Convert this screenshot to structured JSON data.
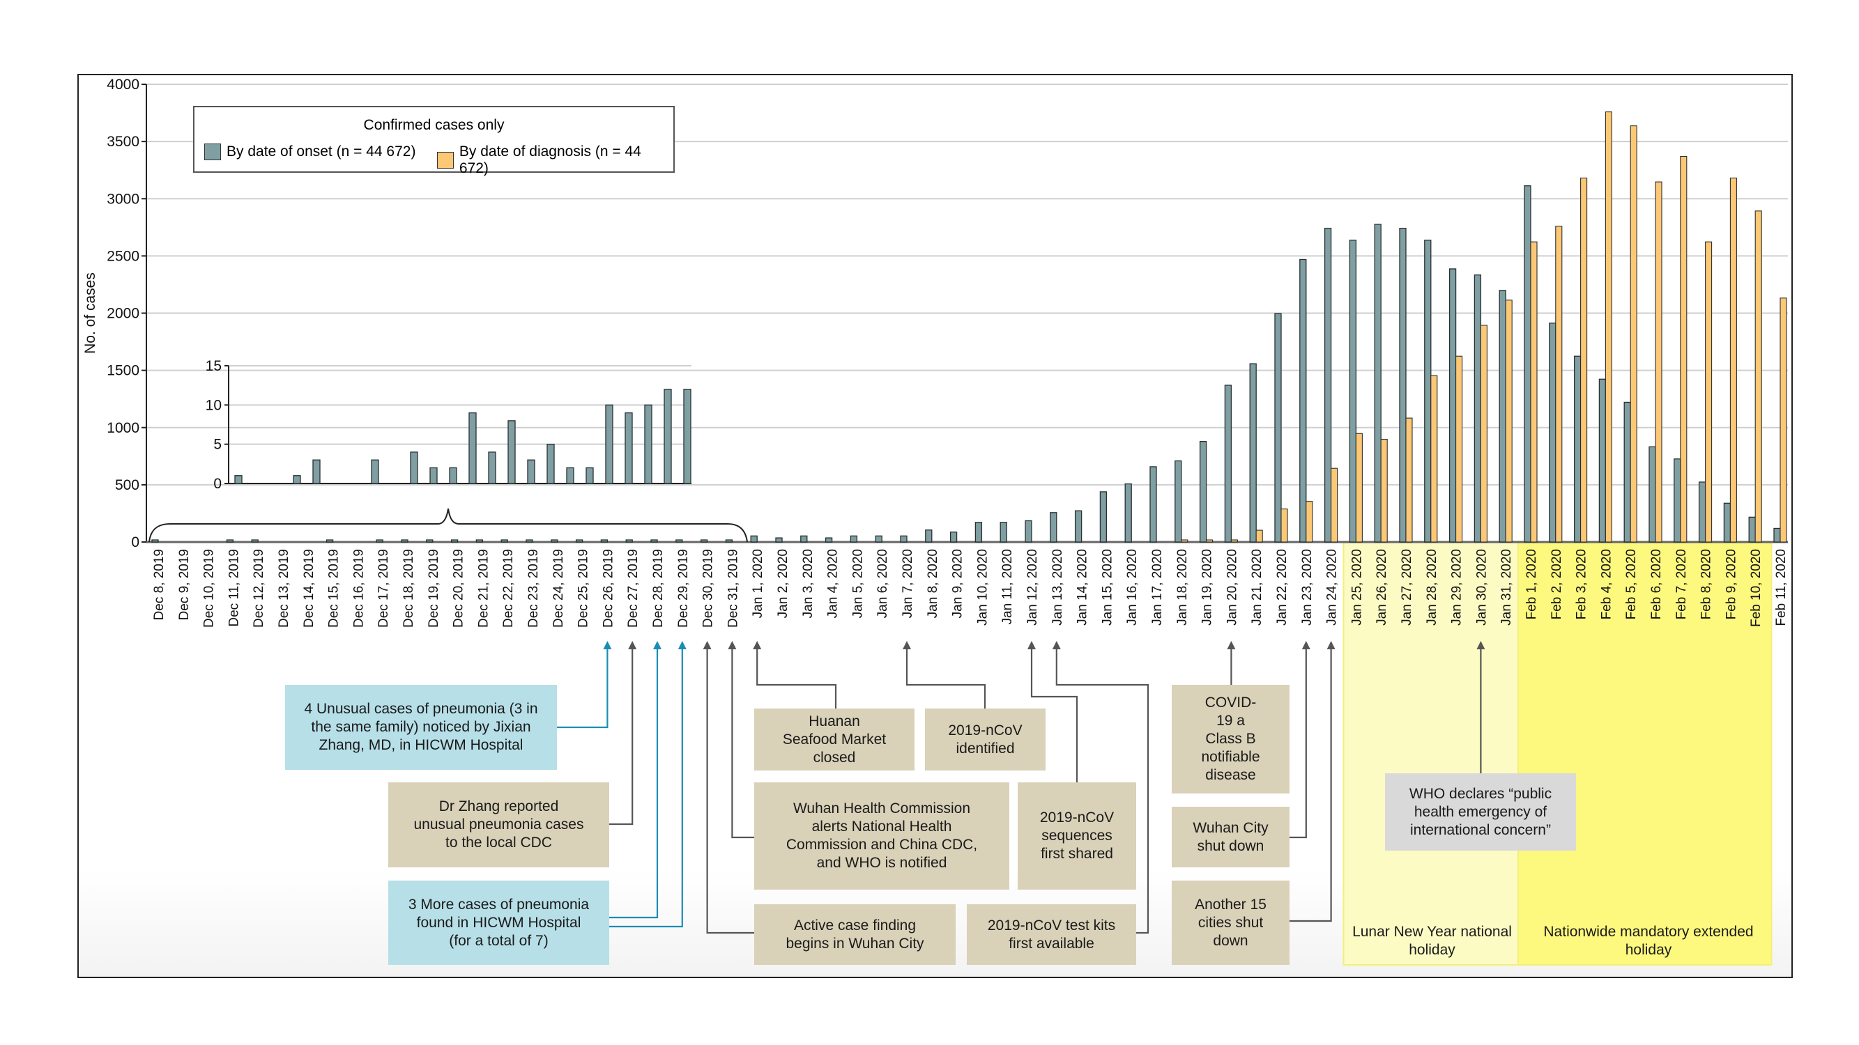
{
  "colors": {
    "onset": "#7f9fa3",
    "diagnosis": "#fdc875",
    "bar_stroke": "#2a2f30",
    "lunar_holiday": "#fdfbc4",
    "extended_holiday": "#fdf87e",
    "blue_connector": "#1b8db3",
    "gray_connector": "#555555",
    "tan_box": "#d9d1b8",
    "blue_box": "#b7dfe8"
  },
  "legend": {
    "title": "Confirmed cases only",
    "items": [
      {
        "label": "By date of onset (n = 44 672)",
        "series": "onset"
      },
      {
        "label": "By date of diagnosis (n = 44 672)",
        "series": "diagnosis"
      }
    ]
  },
  "chart_data": {
    "type": "bar",
    "title": "Confirmed cases only",
    "xlabel": "",
    "ylabel": "No. of cases",
    "ylim": [
      0,
      4000
    ],
    "yticks": [
      0,
      500,
      1000,
      1500,
      2000,
      2500,
      3000,
      3500,
      4000
    ],
    "grid": true,
    "legend_position": "top-left",
    "categories": [
      "Dec 8, 2019",
      "Dec 9, 2019",
      "Dec 10, 2019",
      "Dec 11, 2019",
      "Dec 12, 2019",
      "Dec 13, 2019",
      "Dec 14, 2019",
      "Dec 15, 2019",
      "Dec 16, 2019",
      "Dec 17, 2019",
      "Dec 18, 2019",
      "Dec 19, 2019",
      "Dec 20, 2019",
      "Dec 21, 2019",
      "Dec 22, 2019",
      "Dec 23, 2019",
      "Dec 24, 2019",
      "Dec 25, 2019",
      "Dec 26, 2019",
      "Dec 27, 2019",
      "Dec 28, 2019",
      "Dec 29, 2019",
      "Dec 30, 2019",
      "Dec 31, 2019",
      "Jan 1, 2020",
      "Jan 2, 2020",
      "Jan 3, 2020",
      "Jan 4, 2020",
      "Jan 5, 2020",
      "Jan 6, 2020",
      "Jan 7, 2020",
      "Jan 8, 2020",
      "Jan 9, 2020",
      "Jan 10, 2020",
      "Jan 11, 2020",
      "Jan 12, 2020",
      "Jan 13, 2020",
      "Jan 14, 2020",
      "Jan 15, 2020",
      "Jan 16, 2020",
      "Jan 17, 2020",
      "Jan 18, 2020",
      "Jan 19, 2020",
      "Jan 20, 2020",
      "Jan 21, 2020",
      "Jan 22, 2020",
      "Jan 23, 2020",
      "Jan 24, 2020",
      "Jan 25, 2020",
      "Jan 26, 2020",
      "Jan 27, 2020",
      "Jan 28, 2020",
      "Jan 29, 2020",
      "Jan 30, 2020",
      "Jan 31, 2020",
      "Feb 1, 2020",
      "Feb 2, 2020",
      "Feb 3, 2020",
      "Feb 4, 2020",
      "Feb 5, 2020",
      "Feb 6, 2020",
      "Feb 7, 2020",
      "Feb 8, 2020",
      "Feb 9, 2020",
      "Feb 10, 2020",
      "Feb 11, 2020"
    ],
    "series": [
      {
        "name": "By date of onset (n = 44 672)",
        "key": "onset",
        "values": [
          1,
          0,
          0,
          1,
          3,
          0,
          0,
          3,
          0,
          4,
          2,
          2,
          9,
          4,
          8,
          3,
          5,
          2,
          2,
          10,
          9,
          10,
          12,
          12,
          53,
          36,
          53,
          36,
          53,
          53,
          53,
          105,
          87,
          172,
          172,
          186,
          257,
          273,
          439,
          508,
          658,
          709,
          879,
          1370,
          1558,
          1997,
          2469,
          2742,
          2638,
          2776,
          2742,
          2638,
          2387,
          2334,
          2199,
          3113,
          1913,
          1624,
          1423,
          1221,
          832,
          726,
          524,
          339,
          217,
          119
        ]
      },
      {
        "name": "By date of diagnosis (n = 44 672)",
        "key": "diagnosis",
        "values": [
          0,
          0,
          0,
          0,
          0,
          0,
          0,
          0,
          0,
          0,
          0,
          0,
          0,
          0,
          0,
          0,
          0,
          0,
          0,
          0,
          0,
          0,
          0,
          0,
          0,
          0,
          0,
          0,
          0,
          0,
          0,
          0,
          0,
          0,
          0,
          0,
          0,
          0,
          0,
          0,
          0,
          16,
          13,
          13,
          103,
          289,
          355,
          644,
          948,
          898,
          1083,
          1454,
          1624,
          1894,
          2114,
          2623,
          2760,
          3181,
          3759,
          3637,
          3147,
          3370,
          2623,
          3181,
          2893,
          2132
        ]
      }
    ],
    "inset": {
      "type": "bar",
      "range": [
        "Dec 8, 2019",
        "Dec 31, 2019"
      ],
      "series": "onset",
      "ylim": [
        0,
        15
      ],
      "yticks": [
        0,
        5,
        10,
        15
      ],
      "values": [
        1,
        0,
        0,
        1,
        3,
        0,
        0,
        3,
        0,
        4,
        2,
        2,
        9,
        4,
        8,
        3,
        5,
        2,
        2,
        10,
        9,
        10,
        12,
        12
      ]
    },
    "shaded_regions": [
      {
        "label": "Lunar New Year national holiday",
        "from": "Jan 25, 2020",
        "to": "Jan 31, 2020",
        "color": "#fdfbc4"
      },
      {
        "label": "Nationwide mandatory extended holiday",
        "from": "Feb 1, 2020",
        "to": "Feb 10, 2020",
        "color": "#fdf87e"
      }
    ],
    "annotations": [
      {
        "id": "a1",
        "text": "4 Unusual cases of pneumonia (3 in the same family) noticed by Jixian Zhang, MD, in HICWM Hospital",
        "date": "Dec 26, 2019",
        "style": "blue"
      },
      {
        "id": "a2",
        "text": "Dr Zhang reported unusual pneumonia cases to the local CDC",
        "date": "Dec 27, 2019",
        "style": "tan"
      },
      {
        "id": "a3",
        "text": "3 More cases of pneumonia found in HICWM Hospital (for a total of 7)",
        "date": "Dec 28, 2019 – Dec 29, 2019",
        "style": "blue"
      },
      {
        "id": "a4",
        "text": "Huanan Seafood Market closed",
        "date": "Jan 1, 2020",
        "style": "tan"
      },
      {
        "id": "a5",
        "text": "2019-nCoV identified",
        "date": "Jan 7, 2020",
        "style": "tan"
      },
      {
        "id": "a6",
        "text": "Wuhan Health Commission alerts National Health Commission and China CDC, and WHO is notified",
        "date": "Dec 31, 2019",
        "style": "tan"
      },
      {
        "id": "a7",
        "text": "2019-nCoV sequences first shared",
        "date": "Jan 12, 2020",
        "style": "tan"
      },
      {
        "id": "a8",
        "text": "Active case finding begins in Wuhan City",
        "date": "Dec 30, 2019",
        "style": "tan"
      },
      {
        "id": "a9",
        "text": "2019-nCoV test kits first available",
        "date": "Jan 13, 2020",
        "style": "tan"
      },
      {
        "id": "a10",
        "text": "COVID-19 a Class B notifiable disease",
        "date": "Jan 20, 2020",
        "style": "tan"
      },
      {
        "id": "a11",
        "text": "Wuhan City shut down",
        "date": "Jan 23, 2020",
        "style": "tan"
      },
      {
        "id": "a12",
        "text": "Another 15 cities shut down",
        "date": "Jan 24, 2020",
        "style": "tan"
      },
      {
        "id": "a13",
        "text": "WHO declares “public health emergency of international concern”",
        "date": "Jan 30, 2020",
        "style": "gray"
      }
    ]
  }
}
